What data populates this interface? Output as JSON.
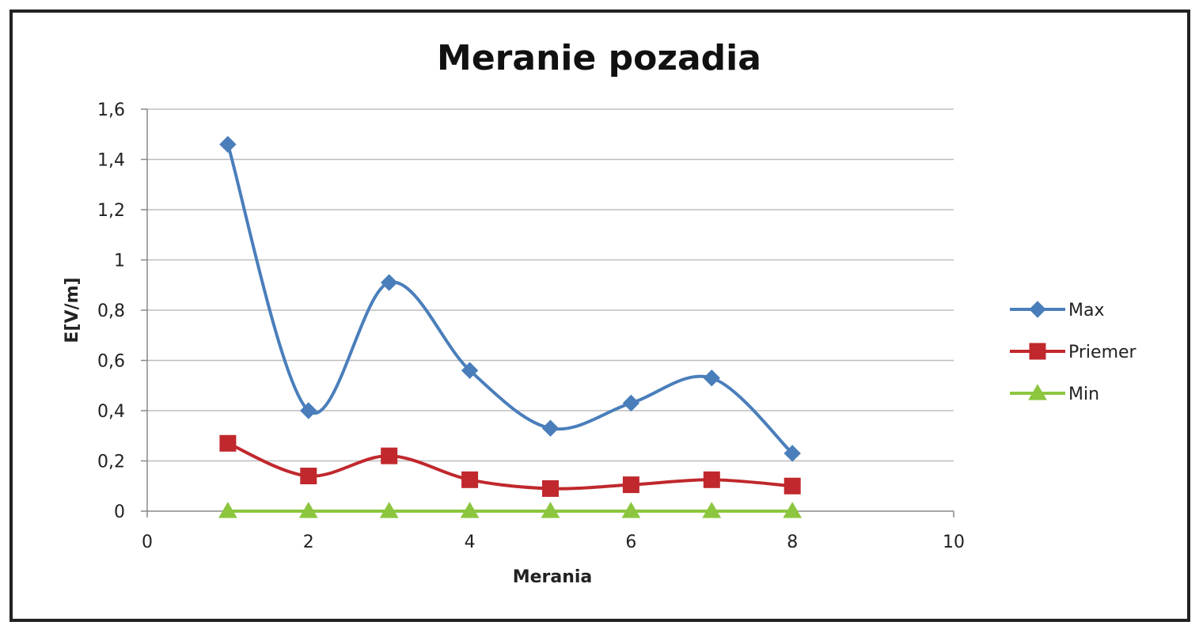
{
  "chart_data": {
    "type": "scatter",
    "title": "Meranie pozadia",
    "xlabel": "Merania",
    "ylabel": "E[V/m]",
    "xlim": [
      0,
      10
    ],
    "ylim": [
      0,
      1.6
    ],
    "x_ticks": [
      0,
      2,
      4,
      6,
      8,
      10
    ],
    "x_tick_labels": [
      "0",
      "2",
      "4",
      "6",
      "8",
      "10"
    ],
    "y_ticks": [
      0,
      0.2,
      0.4,
      0.6,
      0.8,
      1,
      1.2,
      1.4,
      1.6
    ],
    "y_tick_labels": [
      "0",
      "0,2",
      "0,4",
      "0,6",
      "0,8",
      "1",
      "1,2",
      "1,4",
      "1,6"
    ],
    "grid": "horizontal",
    "legend_position": "right",
    "smooth_lines": true,
    "x": [
      1,
      2,
      3,
      4,
      5,
      6,
      7,
      8
    ],
    "series": [
      {
        "name": "Max",
        "marker": "diamond",
        "color": "#4a7ebb",
        "values": [
          1.46,
          0.4,
          0.91,
          0.56,
          0.33,
          0.43,
          0.53,
          0.23
        ]
      },
      {
        "name": "Priemer",
        "marker": "square",
        "color": "#c0282d",
        "values": [
          0.27,
          0.14,
          0.22,
          0.125,
          0.09,
          0.105,
          0.125,
          0.1
        ]
      },
      {
        "name": "Min",
        "marker": "triangle",
        "color": "#8cc63f",
        "values": [
          0,
          0,
          0,
          0,
          0,
          0,
          0,
          0
        ]
      }
    ]
  }
}
